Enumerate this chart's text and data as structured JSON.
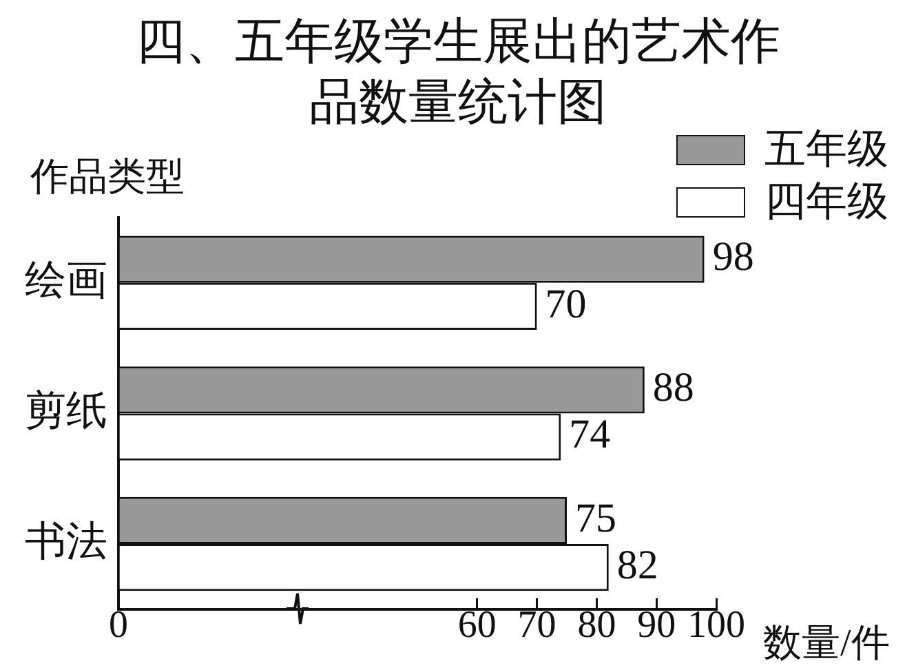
{
  "chart_data": {
    "type": "bar",
    "orientation": "horizontal",
    "title": "四、五年级学生展出的艺术作品数量统计图",
    "xlabel": "数量/件",
    "ylabel": "作品类型",
    "categories": [
      "绘画",
      "剪纸",
      "书法"
    ],
    "series": [
      {
        "name": "五年级",
        "color": "#999999",
        "values": [
          98,
          88,
          75
        ]
      },
      {
        "name": "四年级",
        "color": "#ffffff",
        "values": [
          70,
          74,
          82
        ]
      }
    ],
    "xlim": [
      0,
      100
    ],
    "xticks": [
      0,
      60,
      70,
      80,
      90,
      100
    ],
    "data_labels": true,
    "legend": "top right",
    "grid": false
  }
}
